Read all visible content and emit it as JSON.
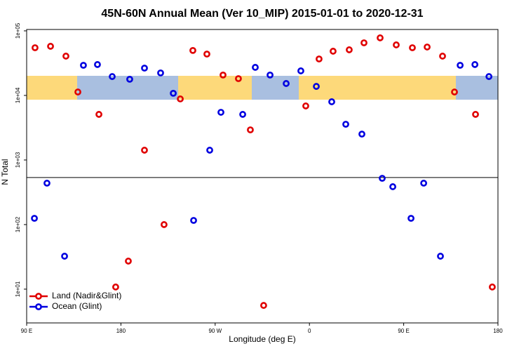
{
  "chart_data": {
    "type": "scatter",
    "title": "45N-60N Annual Mean (Ver 10_MIP)   2015-01-01 to 2020-12-31",
    "xlabel": "Longitude (deg E)",
    "ylabel": "N Total",
    "xlim": [
      90,
      540
    ],
    "xticks": [
      {
        "value": 90,
        "label": "90 E"
      },
      180,
      {
        "value": 270,
        "label": "90 W"
      },
      {
        "value": 360,
        "label": "0"
      },
      {
        "value": 450,
        "label": "90 E"
      },
      {
        "value": 540,
        "label": "180"
      }
    ],
    "ylim": [
      3,
      105000
    ],
    "ylog": true,
    "yticks": [
      {
        "value": 10,
        "label": "1e+01"
      },
      {
        "value": 100,
        "label": "1e+02"
      },
      {
        "value": 1000,
        "label": "1e+03"
      },
      {
        "value": 10000,
        "label": "1e+04"
      },
      {
        "value": 100000,
        "label": "1e+05"
      }
    ],
    "reference_line": 535,
    "legend": "lower left",
    "series": [
      {
        "name": "Land (Nadir&Glint)",
        "color": "#e00000",
        "x": [
          98,
          112.8,
          127.5,
          138.9,
          159,
          175,
          187.1,
          202.5,
          221.2,
          236.7,
          248.7,
          262.1,
          277.5,
          292.2,
          303.6,
          316.3,
          356.5,
          369.2,
          382.6,
          398,
          412.1,
          427.5,
          442.9,
          458.3,
          472.4,
          487.1,
          498.5,
          518.6,
          534.6
        ],
        "values": [
          54800,
          57700,
          40600,
          11300,
          5090,
          10.8,
          27.2,
          1420,
          100,
          8830,
          49700,
          43700,
          20700,
          18200,
          2930,
          5.6,
          6870,
          36700,
          48400,
          50900,
          65300,
          77900,
          60600,
          54800,
          56200,
          40600,
          11300,
          5090,
          10.8
        ]
      },
      {
        "name": "Ocean (Glint)",
        "color": "#0000e0",
        "x": [
          97.4,
          109.4,
          126.2,
          144.2,
          157.6,
          171.7,
          188.4,
          202.5,
          217.9,
          230,
          249.4,
          264.8,
          275.5,
          296.3,
          308.3,
          322.4,
          337.8,
          351.8,
          366.6,
          381.3,
          394.7,
          410.1,
          429.5,
          439.6,
          457,
          469.1,
          485.1,
          503.9,
          518,
          531.4
        ],
        "values": [
          125,
          438,
          32.4,
          29300,
          30100,
          19600,
          17800,
          26500,
          22300,
          10800,
          116,
          1420,
          5480,
          5090,
          27200,
          20700,
          15300,
          24000,
          13800,
          7980,
          3580,
          2520,
          521,
          386,
          125,
          438,
          32.4,
          29300,
          30100,
          19600
        ]
      }
    ]
  }
}
